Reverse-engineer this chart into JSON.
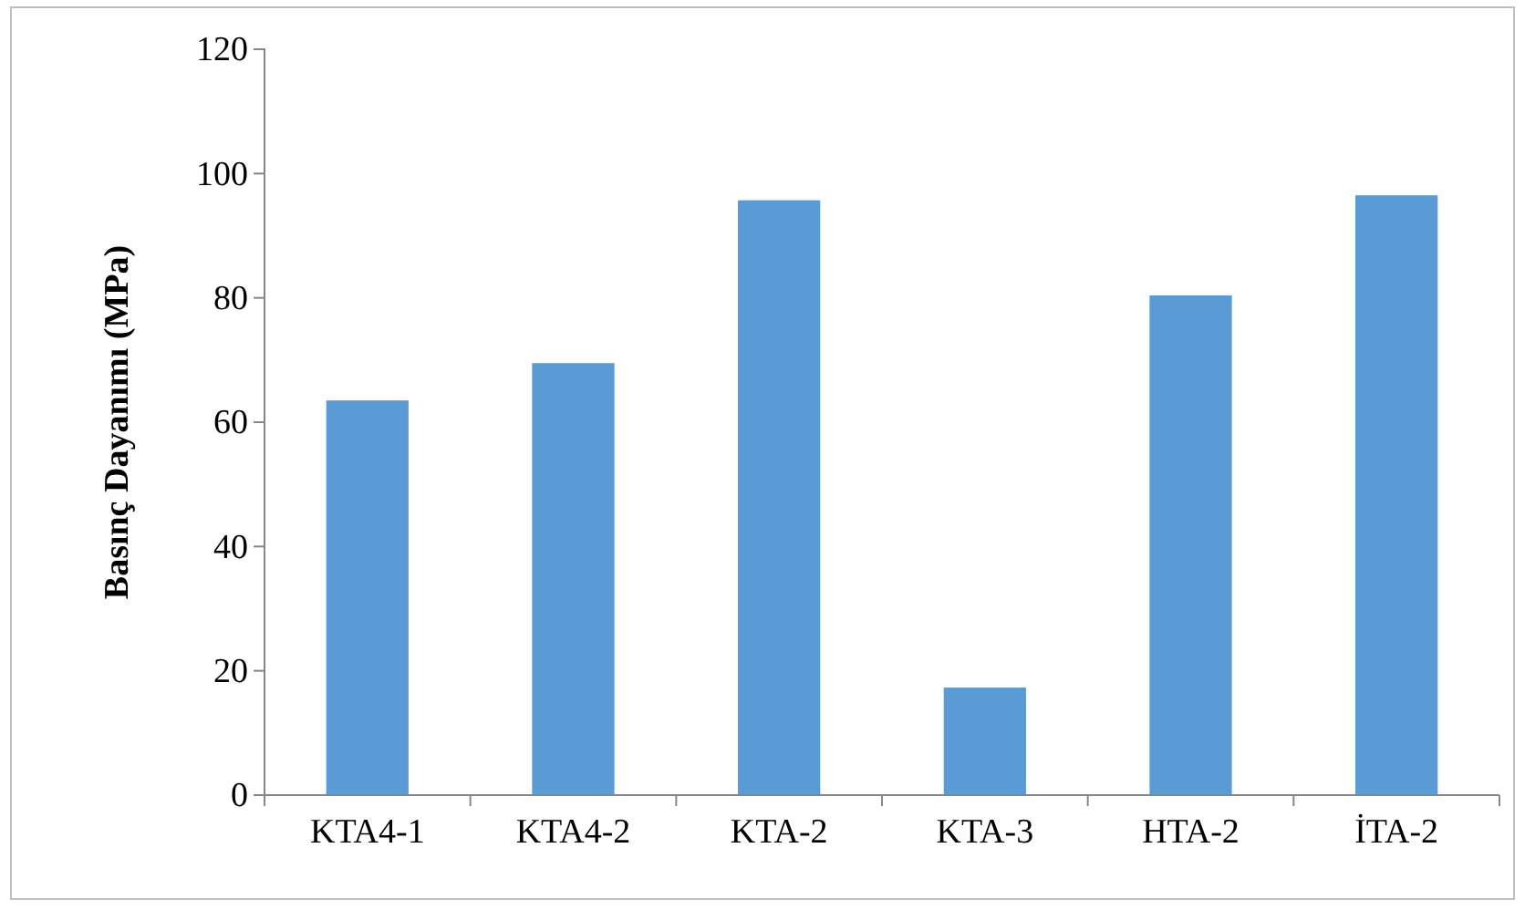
{
  "chart_data": {
    "type": "bar",
    "ylabel": "Basınç Dayanımı (MPa)",
    "categories": [
      "KTA4-1",
      "KTA4-2",
      "KTA-2",
      "KTA-3",
      "HTA-2",
      "İTA-2"
    ],
    "values": [
      63.5,
      69.5,
      95.7,
      17.3,
      80.4,
      96.5
    ],
    "color": "#5b9bd5",
    "ylim": [
      0,
      120
    ],
    "yticks": [
      0,
      20,
      40,
      60,
      80,
      100,
      120
    ],
    "grid": false
  }
}
